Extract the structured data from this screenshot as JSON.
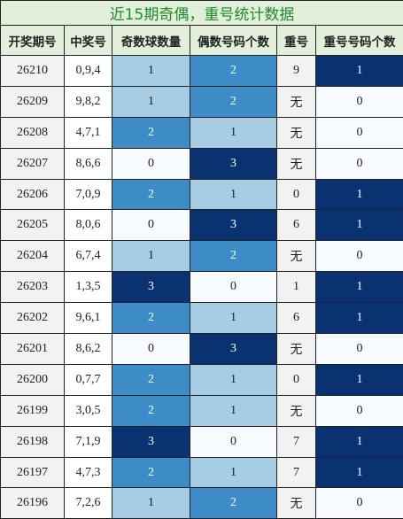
{
  "table": {
    "title": "近15期奇偶，重号统计数据",
    "header": [
      "开奖期号",
      "中奖号",
      "奇数球数量",
      "偶数号码个数",
      "重号",
      "重号号码个数"
    ],
    "rows": [
      [
        "26210",
        "0,9,4",
        1,
        2,
        9,
        1
      ],
      [
        "26209",
        "9,8,2",
        1,
        2,
        "无",
        0
      ],
      [
        "26208",
        "4,7,1",
        2,
        1,
        "无",
        0
      ],
      [
        "26207",
        "8,6,6",
        0,
        3,
        "无",
        0
      ],
      [
        "26206",
        "7,0,9",
        2,
        1,
        0,
        1
      ],
      [
        "26205",
        "8,0,6",
        0,
        3,
        6,
        1
      ],
      [
        "26204",
        "6,7,4",
        1,
        2,
        "无",
        0
      ],
      [
        "26203",
        "1,3,5",
        3,
        0,
        1,
        1
      ],
      [
        "26202",
        "9,6,1",
        2,
        1,
        6,
        1
      ],
      [
        "26201",
        "8,6,2",
        0,
        3,
        "无",
        0
      ],
      [
        "26200",
        "0,7,7",
        2,
        1,
        0,
        1
      ],
      [
        "26199",
        "3,0,5",
        2,
        1,
        "无",
        0
      ],
      [
        "26198",
        "7,1,9",
        3,
        0,
        7,
        1
      ],
      [
        "26197",
        "4,7,3",
        2,
        1,
        7,
        1
      ],
      [
        "26196",
        "7,2,6",
        1,
        2,
        "无",
        0
      ]
    ]
  }
}
